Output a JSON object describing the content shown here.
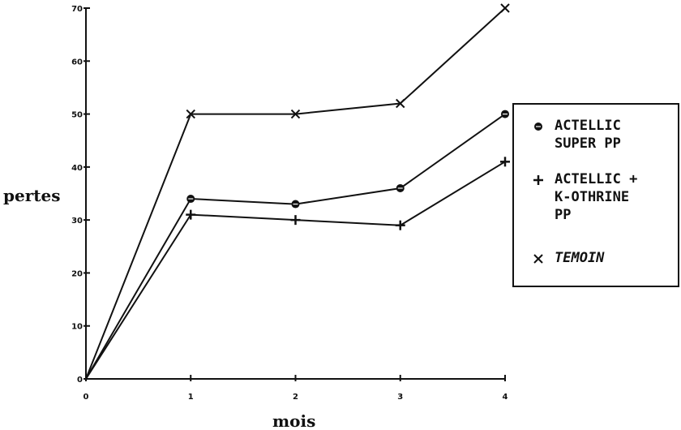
{
  "chart_data": {
    "type": "line",
    "xlabel": "mois",
    "ylabel": "pertes",
    "x": [
      0,
      1,
      2,
      3,
      4
    ],
    "xlim": [
      0,
      4
    ],
    "ylim": [
      0,
      70
    ],
    "x_ticks": [
      0,
      1,
      2,
      3,
      4
    ],
    "y_ticks": [
      0,
      10,
      20,
      30,
      40,
      50,
      60,
      70
    ],
    "grid": false,
    "legend_position": "right",
    "series": [
      {
        "name": "ACTELLIC SUPER PP",
        "legend_lines": [
          "ACTELLIC",
          "SUPER PP"
        ],
        "marker": "filled-circle",
        "values": [
          0,
          34,
          33,
          36,
          50
        ]
      },
      {
        "name": "ACTELLIC + K-OTHRINE PP",
        "legend_lines": [
          "ACTELLIC +",
          "K-OTHRINE",
          "PP"
        ],
        "marker": "plus",
        "values": [
          0,
          31,
          30,
          29,
          41
        ]
      },
      {
        "name": "TEMOIN",
        "legend_lines": [
          "TEMOIN"
        ],
        "marker": "cross",
        "values": [
          0,
          50,
          50,
          52,
          70
        ]
      }
    ],
    "colors": {
      "line": "#111111",
      "background": "#ffffff"
    }
  }
}
